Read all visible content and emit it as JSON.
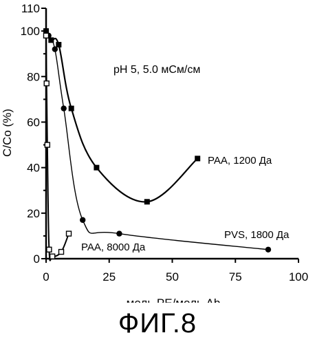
{
  "figure_caption": "ФИГ.8",
  "chart_data": {
    "type": "line",
    "title": "",
    "condition_text": "pH 5, 5.0 мСм/см",
    "xlabel": "моль PE/моль Ab",
    "ylabel": "C/Co (%)",
    "xlim": [
      0,
      100
    ],
    "ylim": [
      0,
      110
    ],
    "x_ticks": [
      0,
      25,
      50,
      75,
      100
    ],
    "y_ticks": [
      0,
      20,
      40,
      60,
      80,
      100
    ],
    "x_tick_labels": [
      "0",
      "25",
      "50",
      "75",
      "100"
    ],
    "y_tick_labels": [
      "0",
      "20",
      "40",
      "60",
      "80",
      "100",
      "110"
    ],
    "grid": false,
    "series": [
      {
        "name": "PAA, 1200 Да",
        "marker": "filled-square",
        "color": "#000000",
        "x": [
          0,
          2,
          5,
          10,
          20,
          40,
          60
        ],
        "y": [
          100,
          96,
          94,
          66,
          40,
          25,
          44
        ]
      },
      {
        "name": "PVS, 1800 Да",
        "marker": "filled-circle",
        "color": "#000000",
        "x": [
          0,
          1,
          3.5,
          7,
          14.5,
          29,
          88
        ],
        "y": [
          100,
          98,
          92,
          66,
          17,
          11,
          4
        ]
      },
      {
        "name": "PAA, 8000 Да",
        "marker": "open-square",
        "color": "#000000",
        "x": [
          0,
          0.2,
          0.5,
          1.2,
          2.5,
          6,
          9
        ],
        "y": [
          98,
          77,
          50,
          4,
          1,
          3,
          11
        ]
      }
    ]
  }
}
